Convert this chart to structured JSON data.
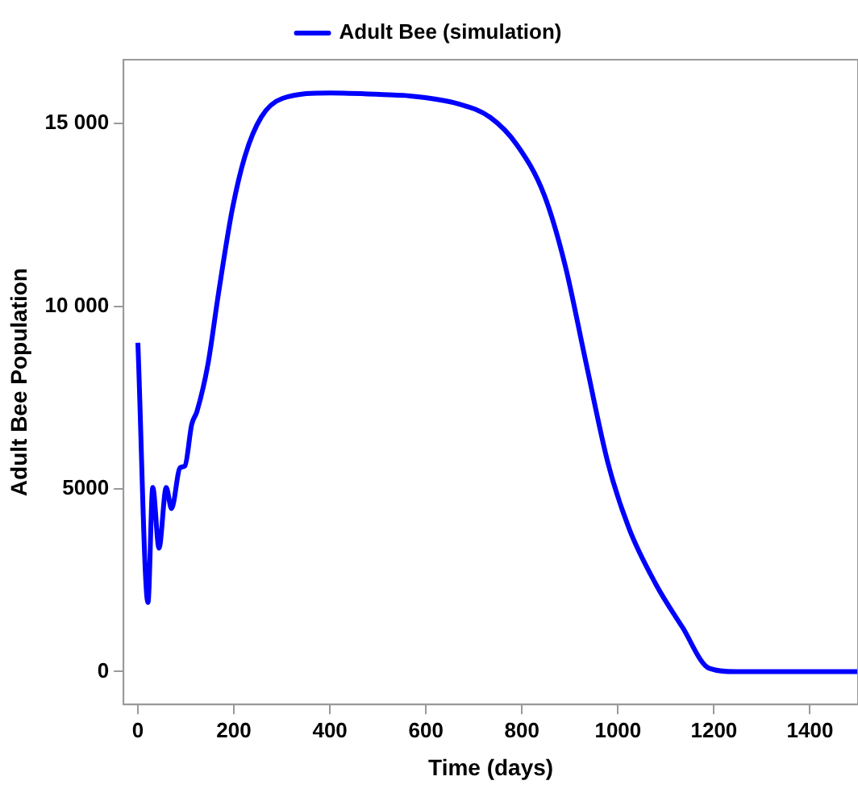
{
  "chart_data": {
    "type": "line",
    "xlabel": "Time (days)",
    "ylabel": "Adult Bee Population",
    "legend": "top",
    "grid": false,
    "marker": "none",
    "line_style": "solid",
    "xlim": [
      -30,
      1500
    ],
    "xticks": [
      0,
      200,
      400,
      600,
      800,
      1000,
      1200,
      1400
    ],
    "ylim": [
      -900,
      16750
    ],
    "yticks": [
      0,
      5000,
      {
        "value": 10000,
        "label": "10 000"
      },
      {
        "value": 15000,
        "label": "15 000"
      }
    ],
    "series": [
      {
        "name": "Adult Bee (simulation)",
        "color": "#0000ff",
        "x": [
          0,
          21,
          31,
          44,
          59,
          70,
          88,
          98,
          112,
          123,
          146,
          168,
          196,
          223,
          257,
          301,
          401,
          523,
          557,
          668,
          734,
          790,
          846,
          890,
          934,
          979,
          1023,
          1079,
          1134,
          1190,
          1246,
          1300,
          1400,
          1500
        ],
        "values": [
          9000,
          1890,
          5040,
          3380,
          5040,
          4460,
          5580,
          5630,
          6760,
          7120,
          8420,
          10360,
          12610,
          14110,
          15180,
          15690,
          15840,
          15790,
          15770,
          15540,
          15170,
          14410,
          13060,
          11120,
          8420,
          5720,
          3920,
          2390,
          1220,
          90,
          0,
          0,
          0,
          0
        ]
      }
    ]
  }
}
